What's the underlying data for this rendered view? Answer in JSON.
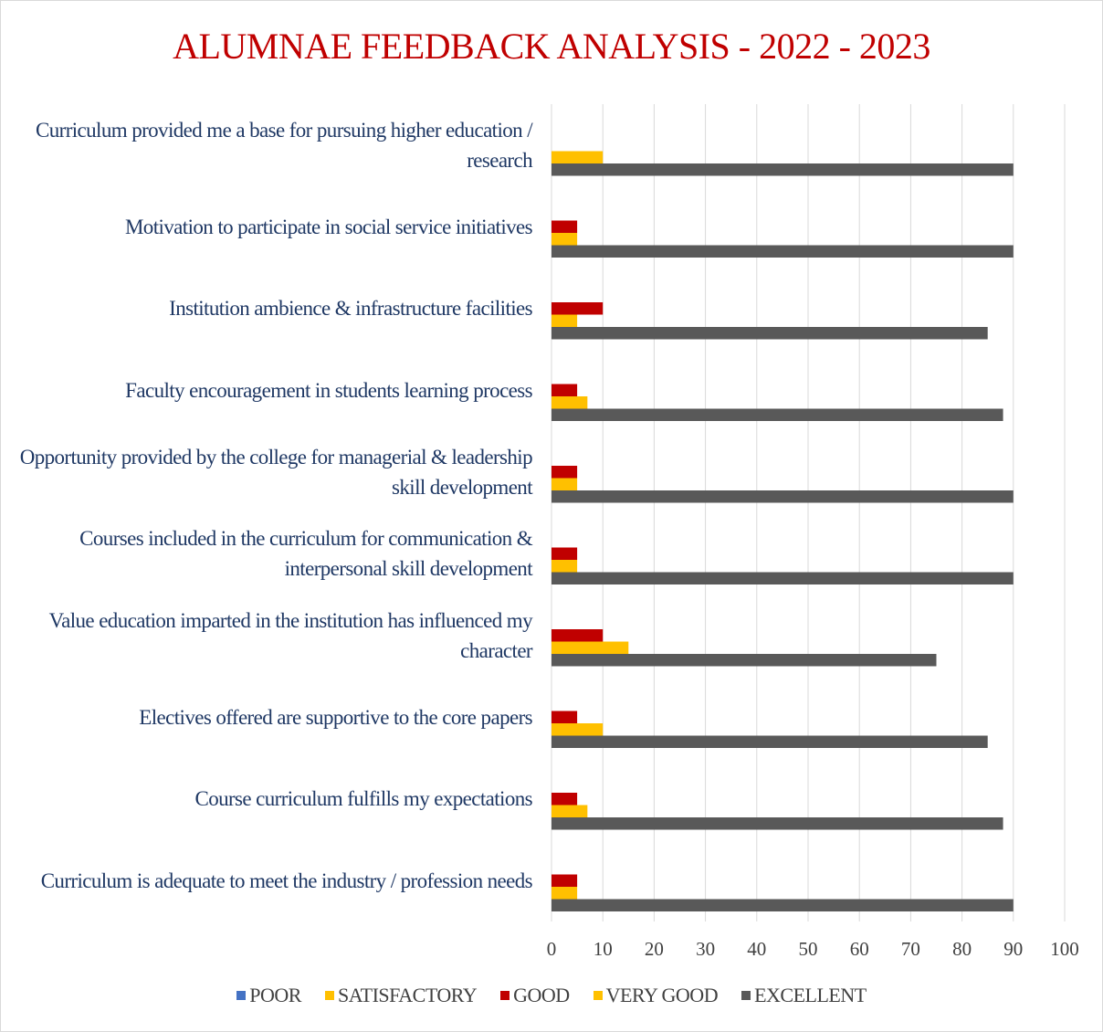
{
  "chart_data": {
    "type": "bar",
    "orientation": "horizontal",
    "title": "ALUMNAE FEEDBACK ANALYSIS - 2022 - 2023",
    "categories": [
      "Curriculum provided me a base for pursuing higher education / research",
      "Motivation to participate in social service initiatives",
      "Institution ambience & infrastructure facilities",
      "Faculty encouragement in students learning process",
      "Opportunity provided by the college for managerial & leadership skill development",
      "Courses included in the curriculum for communication & interpersonal skill development",
      "Value education imparted in the institution has influenced my character",
      "Electives offered are supportive to the core papers",
      "Course curriculum fulfills my expectations",
      "Curriculum is adequate to meet the industry / profession needs"
    ],
    "series": [
      {
        "name": "POOR",
        "color": "#4472c4",
        "values": [
          0,
          0,
          0,
          0,
          0,
          0,
          0,
          0,
          0,
          0
        ]
      },
      {
        "name": "SATISFACTORY",
        "color": "#ffc000",
        "values": [
          0,
          0,
          0,
          0,
          0,
          0,
          0,
          0,
          0,
          0
        ]
      },
      {
        "name": "GOOD",
        "color": "#c00000",
        "values": [
          0,
          5,
          10,
          5,
          5,
          5,
          10,
          5,
          5,
          5
        ]
      },
      {
        "name": "VERY GOOD",
        "color": "#ffc000",
        "values": [
          10,
          5,
          5,
          7,
          5,
          5,
          15,
          10,
          7,
          5
        ]
      },
      {
        "name": "EXCELLENT",
        "color": "#595959",
        "values": [
          90,
          90,
          85,
          88,
          90,
          90,
          75,
          85,
          88,
          90
        ]
      }
    ],
    "xlim": [
      0,
      100
    ],
    "xticks": [
      0,
      10,
      20,
      30,
      40,
      50,
      60,
      70,
      80,
      90,
      100
    ],
    "grid": true,
    "legend": "bottom"
  }
}
